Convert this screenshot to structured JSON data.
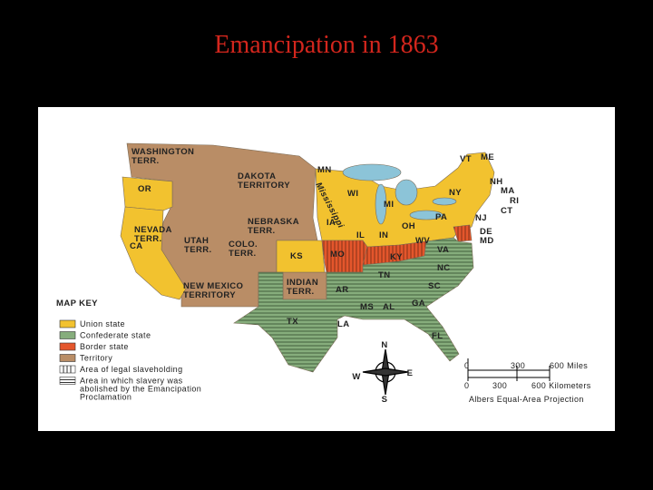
{
  "title": "Emancipation in 1863",
  "map": {
    "labels": [
      [
        "WASHINGTON",
        "TERR."
      ],
      [
        "DAKOTA",
        "TERRITORY"
      ],
      [
        "OR"
      ],
      [
        "MN"
      ],
      [
        "NEBRASKA",
        "TERR."
      ],
      [
        "IA"
      ],
      [
        "NEVADA",
        "TERR."
      ],
      [
        "UTAH",
        "TERR."
      ],
      [
        "COLO.",
        "TERR."
      ],
      [
        "CA"
      ],
      [
        "KS"
      ],
      [
        "MO"
      ],
      [
        "IL"
      ],
      [
        "IN"
      ],
      [
        "OH"
      ],
      [
        "WI"
      ],
      [
        "MI"
      ],
      [
        "NY"
      ],
      [
        "PA"
      ],
      [
        "VT"
      ],
      [
        "ME"
      ],
      [
        "NH"
      ],
      [
        "MA"
      ],
      [
        "RI"
      ],
      [
        "CT"
      ],
      [
        "NJ"
      ],
      [
        "DE"
      ],
      [
        "MD"
      ],
      [
        "WV"
      ],
      [
        "VA"
      ],
      [
        "KY"
      ],
      [
        "TN"
      ],
      [
        "NC"
      ],
      [
        "SC"
      ],
      [
        "GA"
      ],
      [
        "AL"
      ],
      [
        "MS"
      ],
      [
        "AR"
      ],
      [
        "LA"
      ],
      [
        "TX"
      ],
      [
        "FL"
      ],
      [
        "NEW MEXICO",
        "TERRITORY"
      ],
      [
        "INDIAN",
        "TERR."
      ]
    ],
    "river": "Mississippi",
    "compass": [
      "N",
      "E",
      "S",
      "W"
    ]
  },
  "legend": {
    "title": "MAP KEY",
    "items": [
      [
        "Union state"
      ],
      [
        "Confederate state"
      ],
      [
        "Border state"
      ],
      [
        "Territory"
      ],
      [
        "Area of legal slaveholding"
      ],
      [
        "Area in which slavery was",
        "abolished by the Emancipation",
        "Proclamation"
      ]
    ]
  },
  "scale": {
    "miles": [
      "0",
      "300",
      "600 Miles"
    ],
    "kilometers": [
      "0",
      "300",
      "600 Kilometers"
    ],
    "projection": "Albers Equal-Area Projection"
  }
}
